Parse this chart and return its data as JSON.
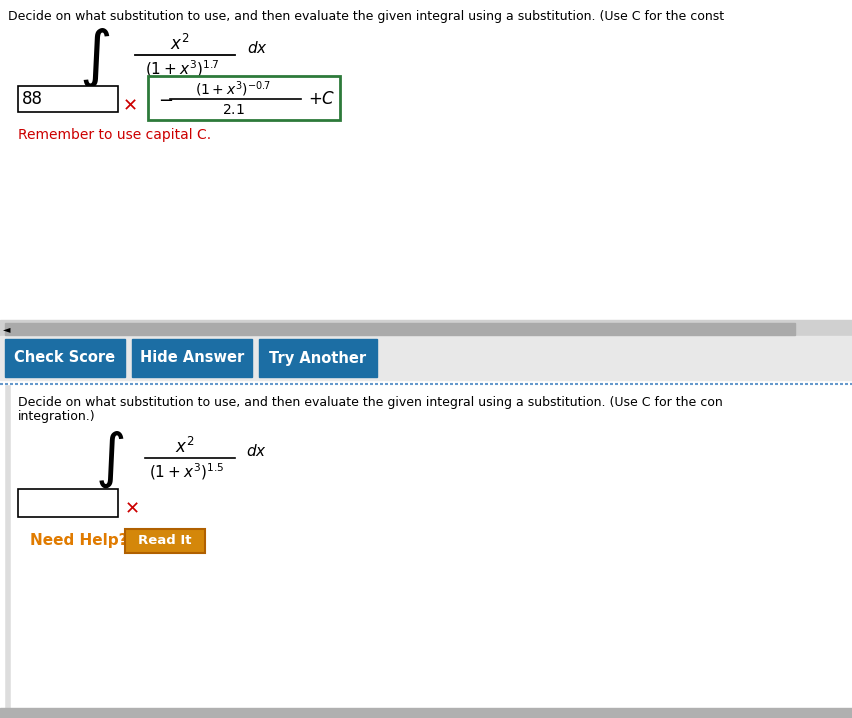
{
  "white": "#ffffff",
  "button_blue": "#1c6ea4",
  "orange_text": "#e07b00",
  "orange_btn_bg": "#d4870a",
  "orange_btn_border": "#b06000",
  "red": "#cc0000",
  "green_border": "#2d7a3a",
  "text_color": "#000000",
  "gray_bar_color": "#aaaaaa",
  "light_gray_bg": "#e8e8e8",
  "dotted_line_color": "#6699cc",
  "section_divider": "#cccccc",
  "bottom_bg": "#f9f9f9",
  "top_text": "Decide on what substitution to use, and then evaluate the given integral using a substitution. (Use C for the const",
  "bottom_text_line1": "Decide on what substitution to use, and then evaluate the given integral using a substitution. (Use C for the con",
  "bottom_text_line2": "integration.)",
  "remember_text": "Remember to use capital C.",
  "need_help_text": "Need Help?",
  "read_it_text": "Read It",
  "check_score": "Check Score",
  "hide_answer": "Hide Answer",
  "try_another": "Try Another",
  "answer_value": "88"
}
